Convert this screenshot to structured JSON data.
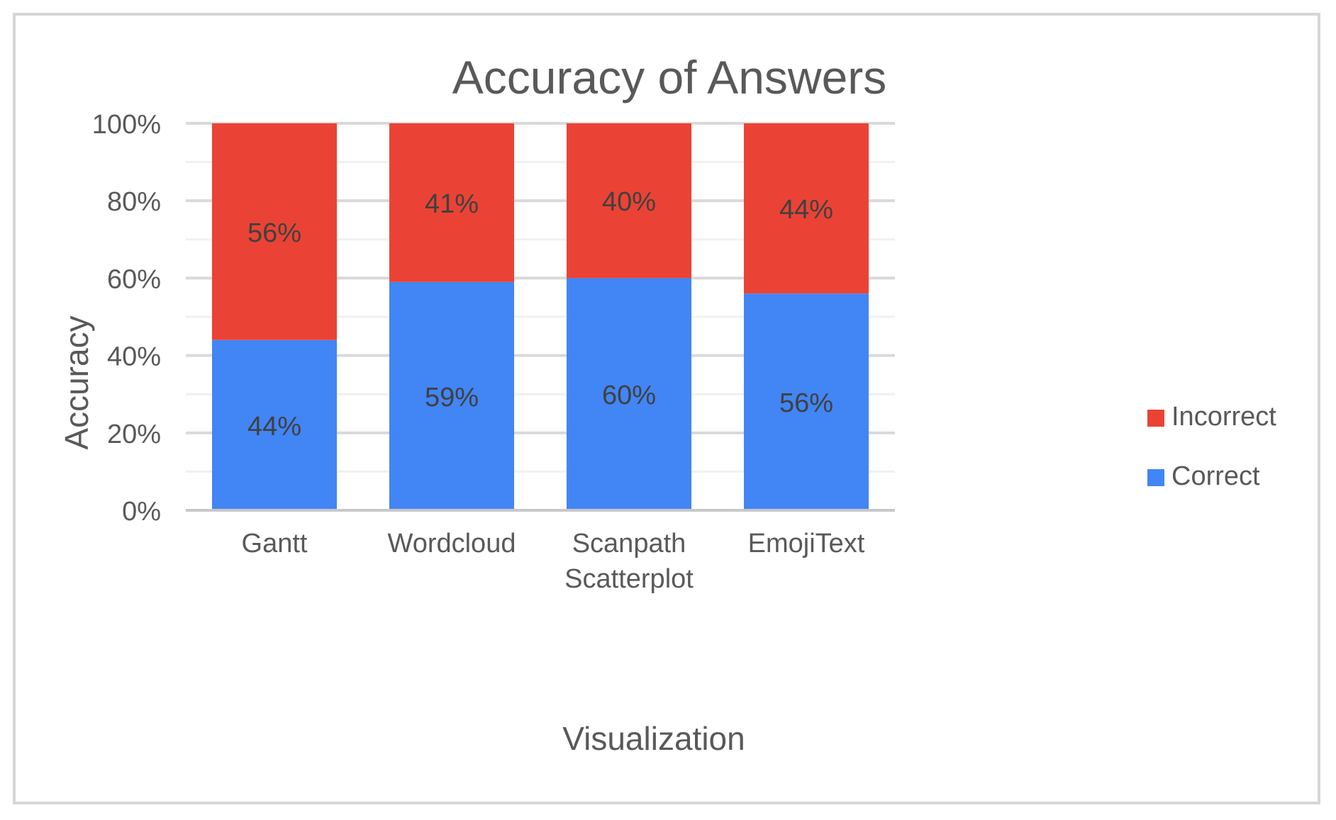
{
  "chart_data": {
    "type": "bar",
    "stacked": true,
    "title": "Accuracy of Answers",
    "xlabel": "Visualization",
    "ylabel": "Accuracy",
    "ylim": [
      0,
      100
    ],
    "yticks": [
      0,
      20,
      40,
      60,
      80,
      100
    ],
    "ytick_labels": [
      "0%",
      "20%",
      "40%",
      "60%",
      "80%",
      "100%"
    ],
    "minor_gridlines": true,
    "legend_position": "right",
    "categories": [
      [
        "Gantt"
      ],
      [
        "Wordcloud"
      ],
      [
        "Scanpath",
        "Scatterplot"
      ],
      [
        "EmojiText"
      ]
    ],
    "series": [
      {
        "name": "Correct",
        "color": "#4285f4",
        "values": [
          44,
          59,
          60,
          56
        ],
        "labels": [
          "44%",
          "59%",
          "60%",
          "56%"
        ]
      },
      {
        "name": "Incorrect",
        "color": "#ea4335",
        "values": [
          56,
          41,
          40,
          44
        ],
        "labels": [
          "56%",
          "41%",
          "40%",
          "44%"
        ]
      }
    ],
    "legend_order": [
      "Incorrect",
      "Correct"
    ],
    "colors": {
      "text": "#595959",
      "major_grid": "#d9d9d9",
      "minor_grid": "#f0f0f0",
      "axis": "#c8c8c8",
      "data_label": "#404040"
    }
  }
}
